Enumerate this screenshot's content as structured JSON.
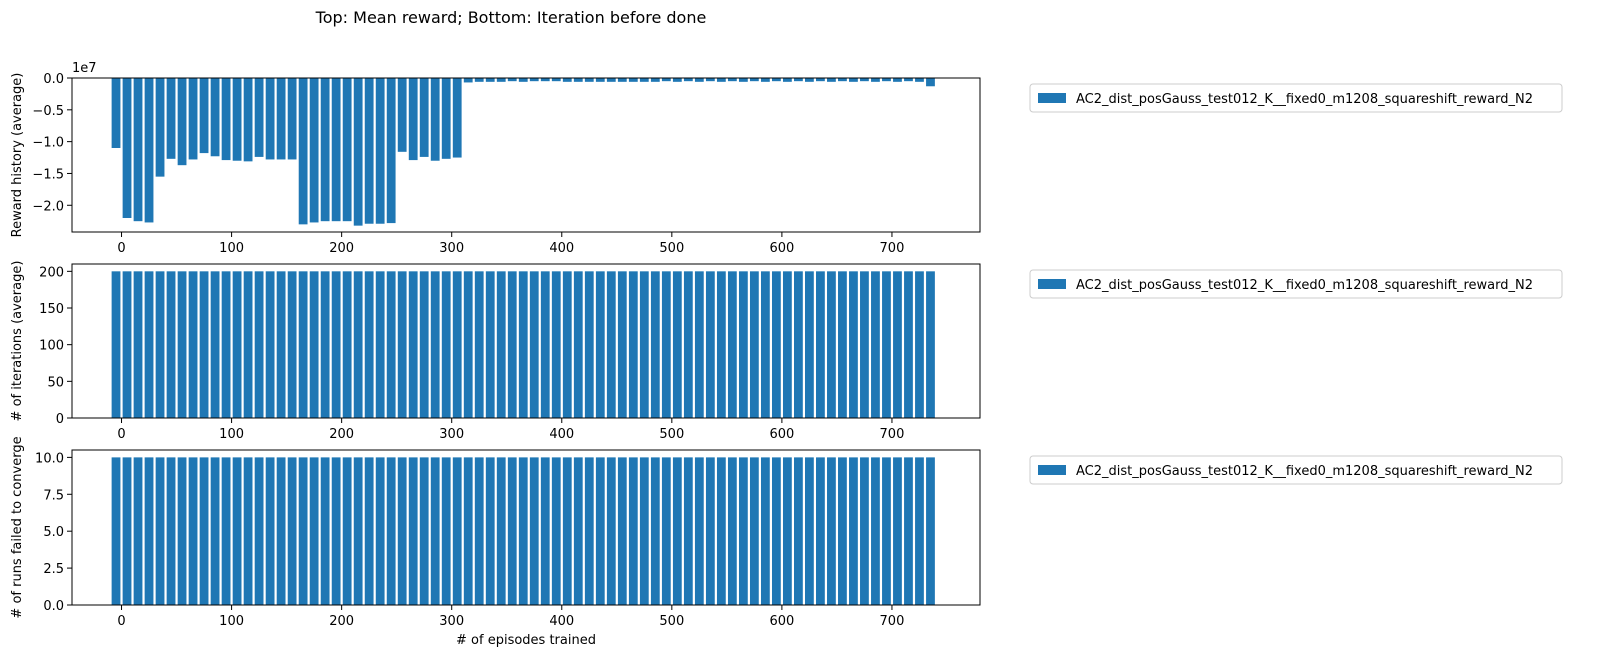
{
  "figure": {
    "title": "Top: Mean reward; Bottom: Iteration before done"
  },
  "chart_data": [
    {
      "type": "bar",
      "ylabel": "Reward history (average)",
      "xlabel": "",
      "offset_text": "1e7",
      "bar_color": "#1f77b4",
      "legend": [
        "AC2_dist_posGauss_test012_K__fixed0_m1208_squareshift_reward_N2"
      ],
      "legend_position": "outside-right-top",
      "xlim": [
        -45,
        780
      ],
      "ylim": [
        -24200000,
        0
      ],
      "xticks": [
        0,
        100,
        200,
        300,
        400,
        500,
        600,
        700
      ],
      "yticks": [
        0,
        -5000000,
        -10000000,
        -15000000,
        -20000000
      ],
      "ytick_labels": [
        "0.0",
        "−0.5",
        "−1.0",
        "−1.5",
        "−2.0"
      ],
      "x": [
        -5,
        5,
        15,
        25,
        35,
        45,
        55,
        65,
        75,
        85,
        95,
        105,
        115,
        125,
        135,
        145,
        155,
        165,
        175,
        185,
        195,
        205,
        215,
        225,
        235,
        245,
        255,
        265,
        275,
        285,
        295,
        305,
        315,
        325,
        335,
        345,
        355,
        365,
        375,
        385,
        395,
        405,
        415,
        425,
        435,
        445,
        455,
        465,
        475,
        485,
        495,
        505,
        515,
        525,
        535,
        545,
        555,
        565,
        575,
        585,
        595,
        605,
        615,
        625,
        635,
        645,
        655,
        665,
        675,
        685,
        695,
        705,
        715,
        725,
        735
      ],
      "values": [
        -11000000,
        -22000000,
        -22500000,
        -22700000,
        -15500000,
        -12700000,
        -13700000,
        -12800000,
        -11800000,
        -12300000,
        -12900000,
        -13000000,
        -13100000,
        -12400000,
        -12800000,
        -12800000,
        -12800000,
        -23000000,
        -22700000,
        -22500000,
        -22500000,
        -22500000,
        -23200000,
        -22900000,
        -22900000,
        -22800000,
        -11600000,
        -12900000,
        -12400000,
        -13000000,
        -12700000,
        -12500000,
        -700000,
        -600000,
        -600000,
        -600000,
        -500000,
        -600000,
        -500000,
        -500000,
        -500000,
        -600000,
        -600000,
        -600000,
        -600000,
        -600000,
        -600000,
        -600000,
        -600000,
        -600000,
        -500000,
        -600000,
        -500000,
        -600000,
        -500000,
        -600000,
        -500000,
        -600000,
        -500000,
        -600000,
        -500000,
        -600000,
        -500000,
        -600000,
        -500000,
        -600000,
        -500000,
        -600000,
        -500000,
        -600000,
        -500000,
        -600000,
        -500000,
        -600000,
        -1300000
      ]
    },
    {
      "type": "bar",
      "ylabel": "# of iterations (average)",
      "xlabel": "",
      "bar_color": "#1f77b4",
      "legend": [
        "AC2_dist_posGauss_test012_K__fixed0_m1208_squareshift_reward_N2"
      ],
      "legend_position": "outside-right-top",
      "xlim": [
        -45,
        780
      ],
      "ylim": [
        0,
        210
      ],
      "xticks": [
        0,
        100,
        200,
        300,
        400,
        500,
        600,
        700
      ],
      "yticks": [
        0,
        50,
        100,
        150,
        200
      ],
      "ytick_labels": [
        "0",
        "50",
        "100",
        "150",
        "200"
      ],
      "x": [
        -5,
        5,
        15,
        25,
        35,
        45,
        55,
        65,
        75,
        85,
        95,
        105,
        115,
        125,
        135,
        145,
        155,
        165,
        175,
        185,
        195,
        205,
        215,
        225,
        235,
        245,
        255,
        265,
        275,
        285,
        295,
        305,
        315,
        325,
        335,
        345,
        355,
        365,
        375,
        385,
        395,
        405,
        415,
        425,
        435,
        445,
        455,
        465,
        475,
        485,
        495,
        505,
        515,
        525,
        535,
        545,
        555,
        565,
        575,
        585,
        595,
        605,
        615,
        625,
        635,
        645,
        655,
        665,
        675,
        685,
        695,
        705,
        715,
        725,
        735
      ],
      "values": [
        200,
        200,
        200,
        200,
        200,
        200,
        200,
        200,
        200,
        200,
        200,
        200,
        200,
        200,
        200,
        200,
        200,
        200,
        200,
        200,
        200,
        200,
        200,
        200,
        200,
        200,
        200,
        200,
        200,
        200,
        200,
        200,
        200,
        200,
        200,
        200,
        200,
        200,
        200,
        200,
        200,
        200,
        200,
        200,
        200,
        200,
        200,
        200,
        200,
        200,
        200,
        200,
        200,
        200,
        200,
        200,
        200,
        200,
        200,
        200,
        200,
        200,
        200,
        200,
        200,
        200,
        200,
        200,
        200,
        200,
        200,
        200,
        200,
        200,
        200
      ]
    },
    {
      "type": "bar",
      "ylabel": "# of runs failed to converge",
      "xlabel": "# of episodes trained",
      "bar_color": "#1f77b4",
      "legend": [
        "AC2_dist_posGauss_test012_K__fixed0_m1208_squareshift_reward_N2"
      ],
      "legend_position": "outside-right-top",
      "xlim": [
        -45,
        780
      ],
      "ylim": [
        0,
        10.5
      ],
      "xticks": [
        0,
        100,
        200,
        300,
        400,
        500,
        600,
        700
      ],
      "yticks": [
        0,
        2.5,
        5.0,
        7.5,
        10.0
      ],
      "ytick_labels": [
        "0.0",
        "2.5",
        "5.0",
        "7.5",
        "10.0"
      ],
      "x": [
        -5,
        5,
        15,
        25,
        35,
        45,
        55,
        65,
        75,
        85,
        95,
        105,
        115,
        125,
        135,
        145,
        155,
        165,
        175,
        185,
        195,
        205,
        215,
        225,
        235,
        245,
        255,
        265,
        275,
        285,
        295,
        305,
        315,
        325,
        335,
        345,
        355,
        365,
        375,
        385,
        395,
        405,
        415,
        425,
        435,
        445,
        455,
        465,
        475,
        485,
        495,
        505,
        515,
        525,
        535,
        545,
        555,
        565,
        575,
        585,
        595,
        605,
        615,
        625,
        635,
        645,
        655,
        665,
        675,
        685,
        695,
        705,
        715,
        725,
        735
      ],
      "values": [
        10,
        10,
        10,
        10,
        10,
        10,
        10,
        10,
        10,
        10,
        10,
        10,
        10,
        10,
        10,
        10,
        10,
        10,
        10,
        10,
        10,
        10,
        10,
        10,
        10,
        10,
        10,
        10,
        10,
        10,
        10,
        10,
        10,
        10,
        10,
        10,
        10,
        10,
        10,
        10,
        10,
        10,
        10,
        10,
        10,
        10,
        10,
        10,
        10,
        10,
        10,
        10,
        10,
        10,
        10,
        10,
        10,
        10,
        10,
        10,
        10,
        10,
        10,
        10,
        10,
        10,
        10,
        10,
        10,
        10,
        10,
        10,
        10,
        10,
        10
      ]
    }
  ]
}
